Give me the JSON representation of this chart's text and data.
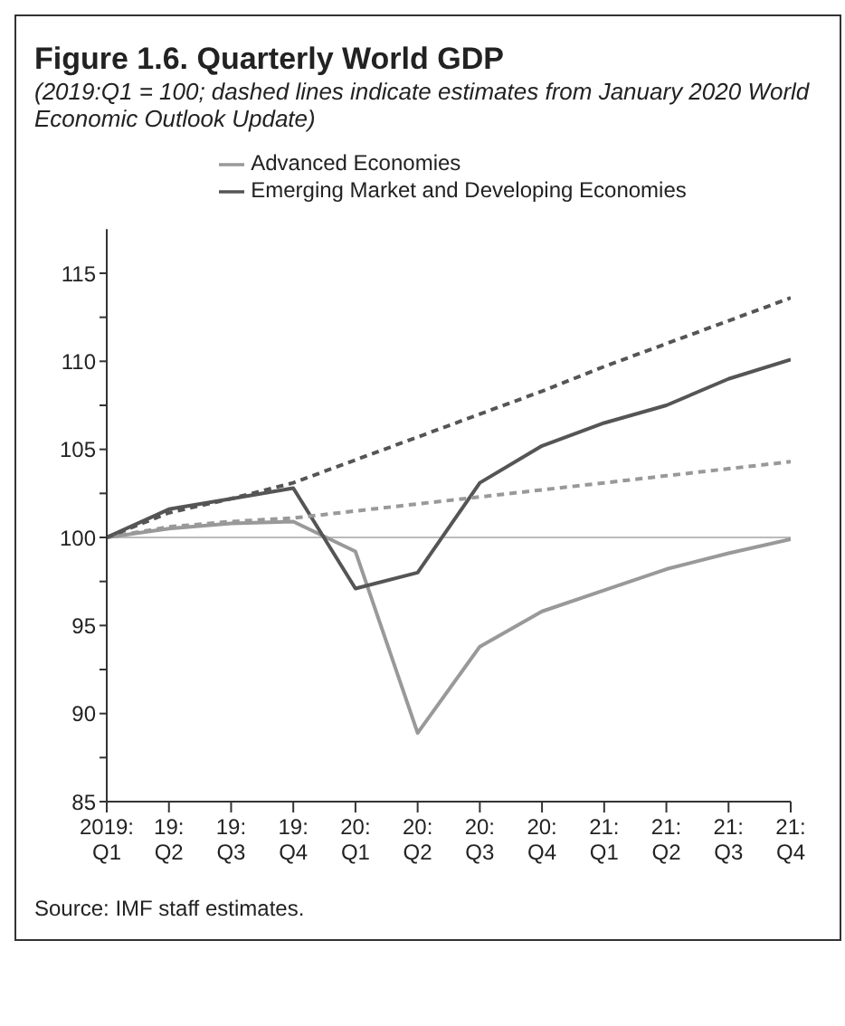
{
  "chart_data": {
    "type": "line",
    "title": "Figure 1.6.  Quarterly World GDP",
    "subtitle": "(2019:Q1 = 100; dashed lines indicate estimates from January 2020 World Economic Outlook Update)",
    "categories": [
      "2019: Q1",
      "19: Q2",
      "19: Q3",
      "19: Q4",
      "20: Q1",
      "20: Q2",
      "20: Q3",
      "20: Q4",
      "21: Q1",
      "21: Q2",
      "21: Q3",
      "21: Q4"
    ],
    "series": [
      {
        "name": "Advanced Economies",
        "color": "#999999",
        "line_style": "solid",
        "values": [
          100,
          100.5,
          100.8,
          100.9,
          99.2,
          88.9,
          93.8,
          95.8,
          97.0,
          98.2,
          99.1,
          99.9
        ]
      },
      {
        "name": "Emerging Market and Developing Economies",
        "color": "#555555",
        "line_style": "solid",
        "values": [
          100,
          101.6,
          102.2,
          102.8,
          97.1,
          98.0,
          103.1,
          105.2,
          106.5,
          107.5,
          109.0,
          110.1
        ]
      },
      {
        "color": "#999999",
        "line_style": "dashed",
        "values": [
          100,
          100.6,
          100.9,
          101.1,
          101.5,
          101.9,
          102.3,
          102.7,
          103.1,
          103.5,
          103.9,
          104.3
        ]
      },
      {
        "color": "#555555",
        "line_style": "dashed",
        "values": [
          100,
          101.4,
          102.2,
          103.1,
          104.4,
          105.7,
          107.0,
          108.3,
          109.7,
          111.0,
          112.3,
          113.6
        ]
      }
    ],
    "ylim": [
      85,
      117.5
    ],
    "yticks": [
      85,
      {
        "value": 87.5,
        "label": null
      },
      90,
      {
        "value": 92.5,
        "label": null
      },
      95,
      {
        "value": 97.5,
        "label": null
      },
      100,
      {
        "value": 102.5,
        "label": null
      },
      105,
      {
        "value": 107.5,
        "label": null
      },
      110,
      {
        "value": 112.5,
        "label": null
      },
      115
    ],
    "ref_lines": [
      {
        "axis": "y",
        "value": 100,
        "color": "#bbbbbb"
      }
    ],
    "grid": false,
    "legend": "top",
    "marker": "none",
    "annotations": [
      "Source: IMF staff estimates."
    ]
  }
}
